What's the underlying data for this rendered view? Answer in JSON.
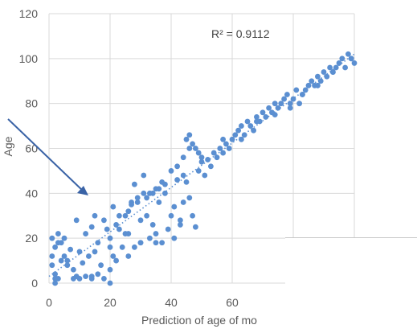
{
  "chart_data": {
    "type": "scatter",
    "title": "",
    "xlabel": "Prediction of age of mo",
    "ylabel": "Age",
    "xlim": [
      0,
      100
    ],
    "ylim": [
      0,
      120
    ],
    "x_ticks": [
      "0",
      "20",
      "40",
      "60"
    ],
    "y_ticks": [
      "0",
      "20",
      "40",
      "60",
      "80",
      "100",
      "120"
    ],
    "grid": true,
    "trendline": {
      "style": "dotted",
      "x": [
        0,
        100
      ],
      "y": [
        3,
        102
      ]
    },
    "annotation": "R² = 0.9112",
    "colors": {
      "points": "#5b8fd1",
      "trendline": "#5b8fd1",
      "arrow": "#3a63a6",
      "grid": "#d9d9d9"
    },
    "x": [
      1,
      2,
      1,
      3,
      5,
      3,
      2,
      4,
      6,
      2,
      1,
      3,
      5,
      7,
      8,
      10,
      12,
      9,
      11,
      14,
      16,
      13,
      15,
      17,
      19,
      18,
      20,
      22,
      21,
      8,
      14,
      25,
      23,
      27,
      29,
      30,
      26,
      24,
      22,
      20,
      28,
      31,
      33,
      35,
      32,
      34,
      37,
      36,
      30,
      26,
      28,
      40,
      38,
      42,
      44,
      41,
      43,
      45,
      46,
      47,
      48,
      44,
      46,
      49,
      50,
      52,
      54,
      51,
      53,
      56,
      58,
      55,
      57,
      60,
      61,
      59,
      62,
      63,
      65,
      64,
      66,
      68,
      67,
      70,
      69,
      72,
      71,
      74,
      73,
      75,
      77,
      76,
      78,
      80,
      79,
      81,
      82,
      83,
      85,
      84,
      86,
      88,
      87,
      90,
      89,
      92,
      91,
      93,
      95,
      94,
      96,
      98,
      97,
      99,
      100,
      45,
      46,
      47,
      48,
      49,
      50,
      33,
      35,
      37,
      39,
      41,
      43,
      10,
      12,
      14,
      16,
      18,
      20,
      2,
      4,
      6,
      9,
      15,
      20,
      25,
      30,
      35,
      40,
      21,
      23,
      27,
      31,
      36,
      38,
      42,
      44,
      26,
      29,
      32,
      34,
      57,
      63,
      68,
      74,
      79,
      83,
      88,
      93,
      99
    ],
    "y": [
      20,
      16,
      8,
      22,
      12,
      2,
      0,
      18,
      10,
      4,
      12,
      18,
      20,
      15,
      6,
      14,
      22,
      3,
      9,
      25,
      18,
      12,
      30,
      8,
      24,
      28,
      20,
      26,
      12,
      2,
      3,
      30,
      24,
      35,
      38,
      28,
      22,
      16,
      10,
      6,
      44,
      48,
      40,
      42,
      30,
      26,
      45,
      36,
      18,
      12,
      16,
      50,
      40,
      52,
      48,
      34,
      28,
      45,
      38,
      30,
      25,
      56,
      60,
      50,
      54,
      55,
      58,
      48,
      52,
      60,
      62,
      56,
      58,
      64,
      66,
      60,
      68,
      64,
      72,
      66,
      70,
      74,
      68,
      76,
      72,
      78,
      74,
      80,
      76,
      78,
      82,
      80,
      84,
      82,
      78,
      86,
      80,
      84,
      88,
      86,
      90,
      92,
      88,
      94,
      90,
      96,
      92,
      94,
      98,
      96,
      100,
      102,
      96,
      100,
      98,
      64,
      66,
      62,
      60,
      58,
      56,
      20,
      22,
      18,
      24,
      20,
      26,
      2,
      3,
      2,
      4,
      2,
      0,
      2,
      10,
      8,
      28,
      14,
      16,
      22,
      18,
      18,
      30,
      34,
      30,
      36,
      40,
      42,
      44,
      46,
      36,
      32,
      36,
      38,
      40,
      64,
      70,
      72,
      75,
      80,
      84,
      88,
      94,
      100
    ]
  }
}
